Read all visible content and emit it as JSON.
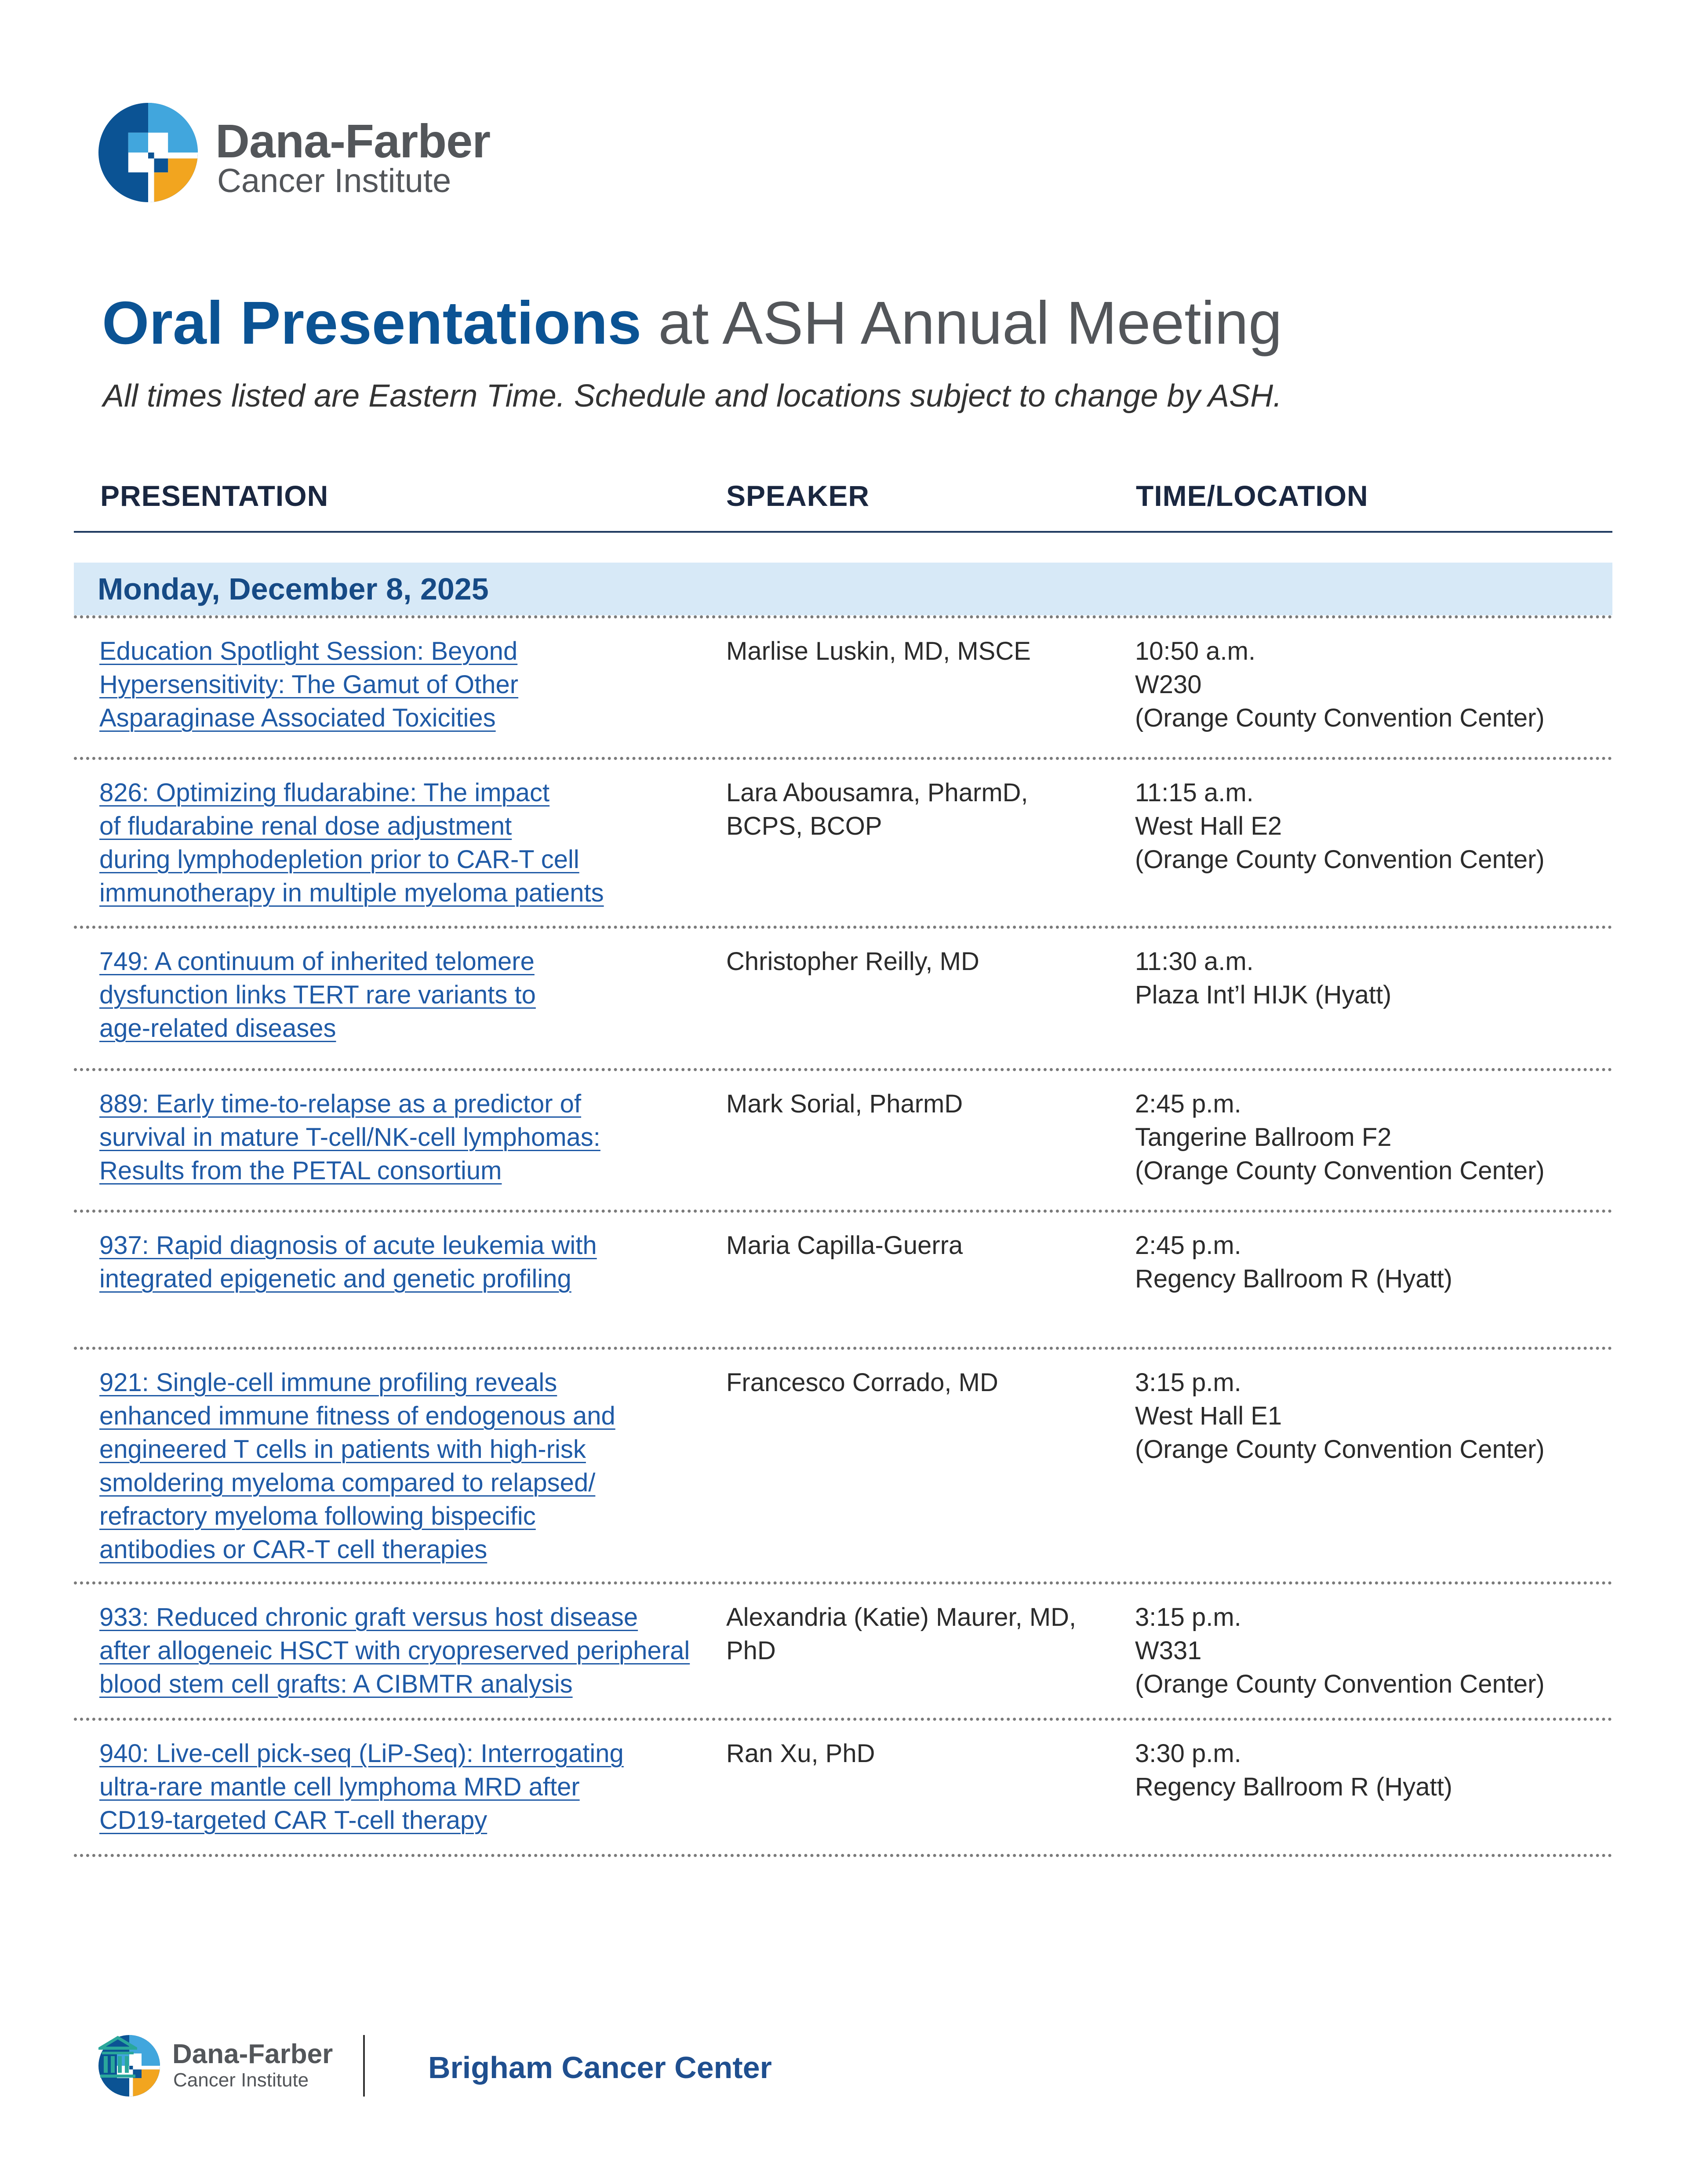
{
  "header": {
    "logo_name": "Dana-Farber",
    "logo_sub": "Cancer Institute"
  },
  "title": {
    "bold": "Oral Presentations",
    "rest": " at ASH Annual Meeting"
  },
  "subtitle": "All times listed are Eastern Time. Schedule and locations subject to change by ASH.",
  "columns": {
    "presentation": "PRESENTATION",
    "speaker": "SPEAKER",
    "time_location": "TIME/LOCATION"
  },
  "day": "Monday, December 8, 2025",
  "rows": [
    {
      "presentation": [
        "Education Spotlight Session: Beyond",
        "Hypersensitivity: The Gamut of Other",
        "Asparaginase Associated Toxicities"
      ],
      "speaker": [
        "Marlise Luskin, MD, MSCE"
      ],
      "time_location": [
        "10:50 a.m.",
        "W230",
        "(Orange County Convention Center)"
      ]
    },
    {
      "presentation": [
        "826: Optimizing fludarabine: The impact",
        "of fludarabine renal dose adjustment",
        "during lymphodepletion prior to CAR-T cell",
        "immunotherapy in multiple myeloma patients"
      ],
      "speaker": [
        "Lara Abousamra, PharmD,",
        "BCPS, BCOP"
      ],
      "time_location": [
        "11:15 a.m.",
        "West Hall E2",
        "(Orange County Convention Center)"
      ]
    },
    {
      "presentation": [
        "749: A continuum of inherited telomere",
        "dysfunction links TERT rare variants to",
        "age-related diseases"
      ],
      "speaker": [
        "Christopher Reilly, MD"
      ],
      "time_location": [
        "11:30 a.m.",
        "Plaza Int’l HIJK (Hyatt)"
      ]
    },
    {
      "presentation": [
        "889: Early time-to-relapse as a predictor of",
        "survival in mature T-cell/NK-cell lymphomas:",
        "Results from the PETAL consortium"
      ],
      "speaker": [
        "Mark Sorial, PharmD"
      ],
      "time_location": [
        "2:45 p.m.",
        "Tangerine Ballroom F2",
        "(Orange County Convention Center)"
      ]
    },
    {
      "presentation": [
        "937: Rapid diagnosis of acute leukemia with",
        "integrated epigenetic and genetic profiling"
      ],
      "speaker": [
        "Maria Capilla-Guerra"
      ],
      "time_location": [
        "2:45 p.m.",
        "Regency Ballroom R (Hyatt)"
      ]
    },
    {
      "presentation": [
        "921: Single-cell immune profiling reveals",
        "enhanced immune fitness of endogenous and",
        "engineered T cells in patients with high-risk",
        "smoldering myeloma compared to relapsed/",
        "refractory myeloma following bispecific",
        "antibodies or CAR-T cell therapies"
      ],
      "speaker": [
        "Francesco Corrado, MD"
      ],
      "time_location": [
        "3:15 p.m.",
        "West Hall E1",
        "(Orange County Convention Center)"
      ]
    },
    {
      "presentation": [
        "933: Reduced chronic graft versus host disease",
        "after allogeneic HSCT with cryopreserved peripheral",
        "blood stem cell grafts: A CIBMTR analysis"
      ],
      "speaker": [
        "Alexandria (Katie) Maurer, MD,",
        "PhD"
      ],
      "time_location": [
        "3:15 p.m.",
        "W331",
        "(Orange County Convention Center)"
      ]
    },
    {
      "presentation": [
        "940: Live-cell pick-seq (LiP-Seq): Interrogating",
        "ultra-rare mantle cell lymphoma MRD after",
        "CD19-targeted CAR T-cell therapy"
      ],
      "speaker": [
        "Ran Xu, PhD"
      ],
      "time_location": [
        "3:30 p.m.",
        "Regency Ballroom R (Hyatt)"
      ]
    }
  ],
  "footer": {
    "logo_name": "Dana-Farber",
    "logo_sub": "Cancer Institute",
    "partner": "Brigham Cancer Center"
  },
  "colors": {
    "brand_blue": "#0b5394",
    "link_blue": "#1f5aa6",
    "band": "#d7e9f7",
    "gray_text": "#53565a",
    "logo_light_blue": "#41a6dd",
    "logo_orange": "#f2a51f"
  }
}
